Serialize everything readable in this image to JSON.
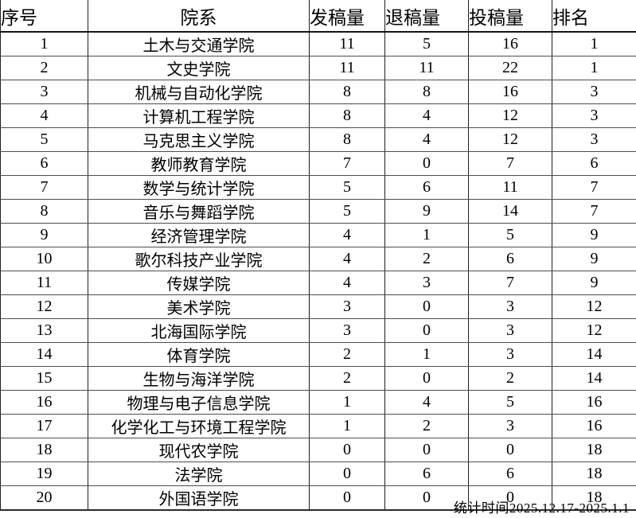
{
  "table": {
    "columns": [
      {
        "key": "index",
        "label": "序号"
      },
      {
        "key": "department",
        "label": "院系"
      },
      {
        "key": "published",
        "label": "发稿量"
      },
      {
        "key": "rejected",
        "label": "退稿量"
      },
      {
        "key": "submitted",
        "label": "投稿量"
      },
      {
        "key": "rank",
        "label": "排名"
      }
    ],
    "rows": [
      [
        "1",
        "土木与交通学院",
        "11",
        "5",
        "16",
        "1"
      ],
      [
        "2",
        "文史学院",
        "11",
        "11",
        "22",
        "1"
      ],
      [
        "3",
        "机械与自动化学院",
        "8",
        "8",
        "16",
        "3"
      ],
      [
        "4",
        "计算机工程学院",
        "8",
        "4",
        "12",
        "3"
      ],
      [
        "5",
        "马克思主义学院",
        "8",
        "4",
        "12",
        "3"
      ],
      [
        "6",
        "教师教育学院",
        "7",
        "0",
        "7",
        "6"
      ],
      [
        "7",
        "数学与统计学院",
        "5",
        "6",
        "11",
        "7"
      ],
      [
        "8",
        "音乐与舞蹈学院",
        "5",
        "9",
        "14",
        "7"
      ],
      [
        "9",
        "经济管理学院",
        "4",
        "1",
        "5",
        "9"
      ],
      [
        "10",
        "歌尔科技产业学院",
        "4",
        "2",
        "6",
        "9"
      ],
      [
        "11",
        "传媒学院",
        "4",
        "3",
        "7",
        "9"
      ],
      [
        "12",
        "美术学院",
        "3",
        "0",
        "3",
        "12"
      ],
      [
        "13",
        "北海国际学院",
        "3",
        "0",
        "3",
        "12"
      ],
      [
        "14",
        "体育学院",
        "2",
        "1",
        "3",
        "14"
      ],
      [
        "15",
        "生物与海洋学院",
        "2",
        "0",
        "2",
        "14"
      ],
      [
        "16",
        "物理与电子信息学院",
        "1",
        "4",
        "5",
        "16"
      ],
      [
        "17",
        "化学化工与环境工程学院",
        "1",
        "2",
        "3",
        "16"
      ],
      [
        "18",
        "现代农学院",
        "0",
        "0",
        "0",
        "18"
      ],
      [
        "19",
        "法学院",
        "0",
        "6",
        "6",
        "18"
      ],
      [
        "20",
        "外国语学院",
        "0",
        "0",
        "0",
        "18"
      ]
    ]
  },
  "footer": {
    "stats_period": "统计时间2025.12.17-2025.1.1"
  }
}
